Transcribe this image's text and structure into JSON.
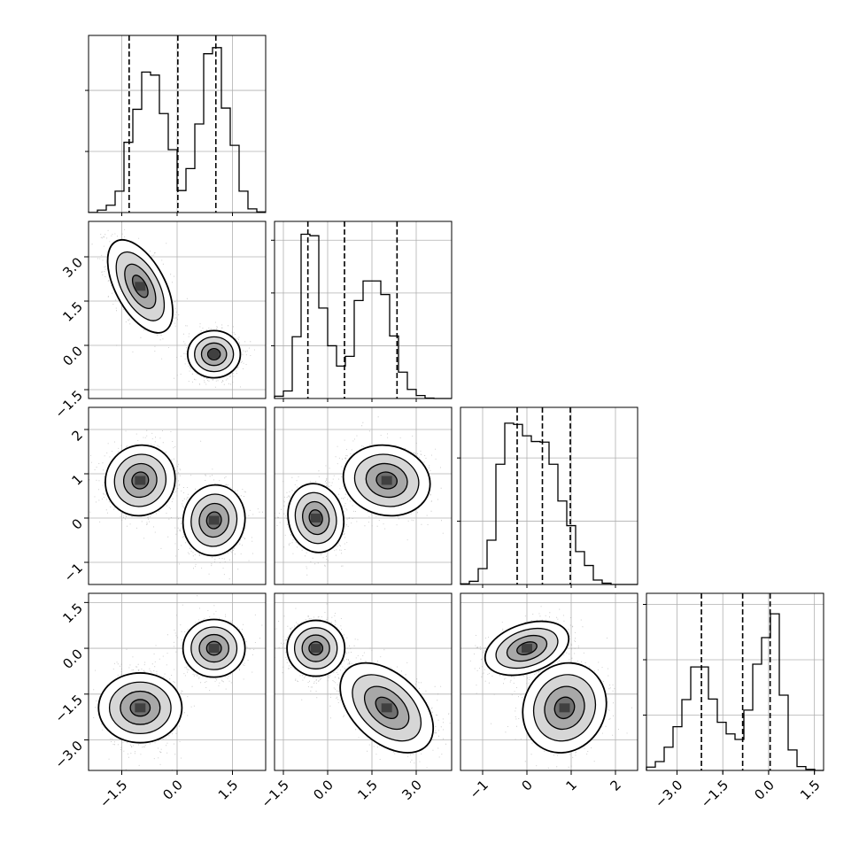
{
  "chart_data": {
    "type": "corner",
    "grid": true,
    "variables": [
      {
        "range": [
          -2.4,
          2.4
        ],
        "ticks": [
          {
            "v": -1.5,
            "label": "−1.5"
          },
          {
            "v": 0.0,
            "label": "0.0"
          },
          {
            "v": 1.5,
            "label": "1.5"
          }
        ]
      },
      {
        "range": [
          -1.8,
          4.2
        ],
        "ticks": [
          {
            "v": -1.5,
            "label": "−1.5"
          },
          {
            "v": 0.0,
            "label": "0.0"
          },
          {
            "v": 1.5,
            "label": "1.5"
          },
          {
            "v": 3.0,
            "label": "3.0"
          }
        ]
      },
      {
        "range": [
          -1.5,
          2.5
        ],
        "ticks": [
          {
            "v": -1,
            "label": "−1"
          },
          {
            "v": 0,
            "label": "0"
          },
          {
            "v": 1,
            "label": "1"
          },
          {
            "v": 2,
            "label": "2"
          }
        ]
      },
      {
        "range": [
          -4.0,
          1.8
        ],
        "ticks": [
          {
            "v": -3.0,
            "label": "−3.0"
          },
          {
            "v": -1.5,
            "label": "−1.5"
          },
          {
            "v": 0.0,
            "label": "0.0"
          },
          {
            "v": 1.5,
            "label": "1.5"
          }
        ]
      }
    ],
    "histograms": [
      {
        "bins_start": -2.4,
        "bin_width": 0.24,
        "counts": [
          2,
          40,
          120,
          350,
          1150,
          1690,
          2300,
          2250,
          1620,
          1030,
          360,
          720,
          1450,
          2600,
          2700,
          1710,
          1100,
          350,
          60,
          10
        ],
        "max_count": 2900,
        "quantiles": [
          -1.3,
          0.02,
          1.05
        ],
        "ytick_counts": [
          1000,
          2000
        ]
      },
      {
        "bins_start": -1.8,
        "bin_width": 0.3,
        "counts": [
          30,
          100,
          820,
          2180,
          2160,
          1200,
          700,
          430,
          560,
          1300,
          1560,
          1560,
          1380,
          830,
          350,
          120,
          40,
          5,
          0,
          0
        ],
        "max_count": 2350,
        "quantiles": [
          -0.67,
          0.57,
          2.35
        ],
        "ytick_counts": [
          700,
          1400,
          2100
        ]
      },
      {
        "bins_start": -1.5,
        "bin_width": 0.2,
        "counts": [
          10,
          50,
          250,
          700,
          1900,
          2550,
          2530,
          2350,
          2260,
          2250,
          1900,
          1320,
          930,
          520,
          300,
          70,
          20,
          0,
          0,
          0
        ],
        "max_count": 2800,
        "quantiles": [
          -0.22,
          0.35,
          0.98
        ],
        "ytick_counts": [
          1000,
          2000
        ]
      },
      {
        "bins_start": -4.0,
        "bin_width": 0.29,
        "counts": [
          60,
          160,
          420,
          790,
          1280,
          1870,
          1870,
          1290,
          870,
          660,
          560,
          1090,
          1920,
          2400,
          2830,
          1360,
          370,
          70,
          20,
          0
        ],
        "max_count": 3200,
        "quantiles": [
          -2.2,
          -0.85,
          0.05
        ],
        "ytick_counts": [
          1000,
          2000,
          3000
        ]
      }
    ],
    "pairs": [
      {
        "row": 1,
        "col": 0,
        "modes": [
          {
            "mx": -1.0,
            "my": 2.0,
            "sx": 0.42,
            "sy": 0.75,
            "rho": -0.55
          },
          {
            "mx": 1.0,
            "my": -0.3,
            "sx": 0.34,
            "sy": 0.38,
            "rho": 0.0
          }
        ]
      },
      {
        "row": 2,
        "col": 0,
        "modes": [
          {
            "mx": -1.0,
            "my": 0.85,
            "sx": 0.45,
            "sy": 0.38,
            "rho": 0.05
          },
          {
            "mx": 1.0,
            "my": -0.05,
            "sx": 0.4,
            "sy": 0.38,
            "rho": 0.05
          }
        ]
      },
      {
        "row": 2,
        "col": 1,
        "modes": [
          {
            "mx": -0.4,
            "my": 0.0,
            "sx": 0.45,
            "sy": 0.37,
            "rho": -0.1
          },
          {
            "mx": 2.0,
            "my": 0.85,
            "sx": 0.7,
            "sy": 0.38,
            "rho": -0.1
          }
        ]
      },
      {
        "row": 3,
        "col": 0,
        "modes": [
          {
            "mx": -1.0,
            "my": -1.95,
            "sx": 0.45,
            "sy": 0.65,
            "rho": 0.0
          },
          {
            "mx": 1.0,
            "my": 0.0,
            "sx": 0.4,
            "sy": 0.45,
            "rho": 0.0
          }
        ]
      },
      {
        "row": 3,
        "col": 1,
        "modes": [
          {
            "mx": -0.4,
            "my": 0.0,
            "sx": 0.45,
            "sy": 0.45,
            "rho": 0.0
          },
          {
            "mx": 2.0,
            "my": -1.95,
            "sx": 0.75,
            "sy": 0.7,
            "rho": -0.45
          }
        ]
      },
      {
        "row": 3,
        "col": 2,
        "modes": [
          {
            "mx": 0.0,
            "my": 0.0,
            "sx": 0.45,
            "sy": 0.42,
            "rho": 0.35
          },
          {
            "mx": 0.85,
            "my": -1.95,
            "sx": 0.45,
            "sy": 0.7,
            "rho": 0.1
          }
        ]
      }
    ]
  }
}
